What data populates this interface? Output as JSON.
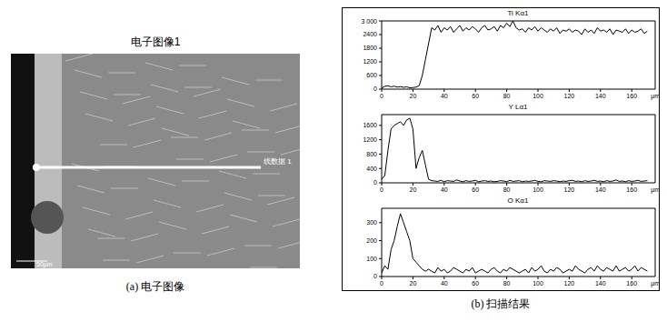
{
  "image": {
    "title": "电子图像1",
    "line_label": "线数据 1",
    "scale_bar": "50μm",
    "caption": "(a) 电子图像"
  },
  "caption_b": "(b) 扫描结果",
  "chart_data": [
    {
      "type": "line",
      "title": "Ti Kα1",
      "color": "#000000",
      "xlabel": "μm",
      "xlim": [
        0,
        175
      ],
      "xticks": [
        0,
        20,
        40,
        60,
        80,
        100,
        120,
        140,
        160
      ],
      "ylim": [
        0,
        3000
      ],
      "yticks": [
        0,
        600,
        1200,
        1800,
        2400,
        {
          "value": 3000,
          "label": "3 000"
        }
      ],
      "x": [
        0,
        2,
        4,
        6,
        8,
        10,
        12,
        14,
        16,
        18,
        20,
        22,
        24,
        26,
        28,
        30,
        32,
        34,
        36,
        38,
        40,
        42,
        44,
        46,
        48,
        50,
        52,
        54,
        56,
        58,
        60,
        62,
        64,
        66,
        68,
        70,
        72,
        74,
        76,
        78,
        80,
        82,
        84,
        86,
        88,
        90,
        92,
        94,
        96,
        98,
        100,
        102,
        104,
        106,
        108,
        110,
        112,
        114,
        116,
        118,
        120,
        122,
        124,
        126,
        128,
        130,
        132,
        134,
        136,
        138,
        140,
        142,
        144,
        146,
        148,
        150,
        152,
        154,
        156,
        158,
        160,
        162,
        164,
        166,
        168,
        170
      ],
      "values": [
        50,
        120,
        150,
        100,
        130,
        90,
        110,
        80,
        100,
        60,
        70,
        90,
        150,
        600,
        1300,
        2000,
        2700,
        2600,
        2800,
        2500,
        2700,
        2600,
        2750,
        2500,
        2650,
        2800,
        2550,
        2700,
        2600,
        2750,
        2650,
        2500,
        2700,
        2800,
        2600,
        2650,
        2750,
        2550,
        2800,
        2700,
        2900,
        2750,
        3000,
        2700,
        2600,
        2650,
        2500,
        2700,
        2600,
        2750,
        2550,
        2700,
        2600,
        2500,
        2650,
        2550,
        2700,
        2450,
        2600,
        2550,
        2650,
        2500,
        2600,
        2550,
        2400,
        2650,
        2500,
        2600,
        2450,
        2700,
        2550,
        2600,
        2500,
        2650,
        2400,
        2600,
        2550,
        2500,
        2650,
        2450,
        2600,
        2500,
        2550,
        2650,
        2450,
        2550
      ]
    },
    {
      "type": "line",
      "title": "Y Lα1",
      "color": "#000000",
      "xlabel": "μm",
      "xlim": [
        0,
        175
      ],
      "xticks": [
        0,
        20,
        40,
        60,
        80,
        100,
        120,
        140,
        160
      ],
      "ylim": [
        0,
        1900
      ],
      "yticks": [
        0,
        400,
        800,
        1200,
        1600
      ],
      "x": [
        0,
        2,
        4,
        6,
        8,
        10,
        12,
        14,
        16,
        18,
        20,
        22,
        24,
        26,
        28,
        30,
        32,
        34,
        36,
        38,
        40,
        42,
        44,
        46,
        48,
        50,
        52,
        54,
        56,
        58,
        60,
        62,
        64,
        66,
        68,
        70,
        72,
        74,
        76,
        78,
        80,
        82,
        84,
        86,
        88,
        90,
        92,
        94,
        96,
        98,
        100,
        102,
        104,
        106,
        108,
        110,
        112,
        114,
        116,
        118,
        120,
        122,
        124,
        126,
        128,
        130,
        132,
        134,
        136,
        138,
        140,
        142,
        144,
        146,
        148,
        150,
        152,
        154,
        156,
        158,
        160,
        162,
        164,
        166,
        168,
        170
      ],
      "values": [
        100,
        200,
        900,
        1500,
        1600,
        1650,
        1700,
        1600,
        1750,
        1800,
        1500,
        400,
        700,
        900,
        500,
        100,
        60,
        50,
        40,
        70,
        30,
        60,
        50,
        40,
        80,
        50,
        30,
        60,
        40,
        50,
        70,
        30,
        50,
        60,
        40,
        50,
        30,
        40,
        60,
        50,
        30,
        70,
        40,
        50,
        60,
        30,
        50,
        40,
        50,
        70,
        40,
        30,
        60,
        50,
        40,
        60,
        50,
        30,
        50,
        40,
        60,
        70,
        40,
        50,
        30,
        60,
        40,
        50,
        70,
        40,
        50,
        30,
        60,
        40,
        50,
        80,
        40,
        50,
        30,
        60,
        40,
        50,
        70,
        40,
        50,
        60
      ]
    },
    {
      "type": "line",
      "title": "O Kα1",
      "color": "#000000",
      "xlabel": "μm",
      "xlim": [
        0,
        175
      ],
      "xticks": [
        0,
        20,
        40,
        60,
        80,
        100,
        120,
        140,
        160
      ],
      "ylim": [
        0,
        380
      ],
      "yticks": [
        0,
        100,
        200,
        300
      ],
      "x": [
        0,
        2,
        4,
        6,
        8,
        10,
        12,
        14,
        16,
        18,
        20,
        22,
        24,
        26,
        28,
        30,
        32,
        34,
        36,
        38,
        40,
        42,
        44,
        46,
        48,
        50,
        52,
        54,
        56,
        58,
        60,
        62,
        64,
        66,
        68,
        70,
        72,
        74,
        76,
        78,
        80,
        82,
        84,
        86,
        88,
        90,
        92,
        94,
        96,
        98,
        100,
        102,
        104,
        106,
        108,
        110,
        112,
        114,
        116,
        118,
        120,
        122,
        124,
        126,
        128,
        130,
        132,
        134,
        136,
        138,
        140,
        142,
        144,
        146,
        148,
        150,
        152,
        154,
        156,
        158,
        160,
        162,
        164,
        166,
        168,
        170
      ],
      "values": [
        20,
        60,
        40,
        150,
        200,
        280,
        350,
        300,
        250,
        200,
        100,
        80,
        60,
        40,
        30,
        40,
        30,
        20,
        50,
        30,
        40,
        20,
        30,
        50,
        40,
        30,
        20,
        40,
        30,
        50,
        20,
        30,
        40,
        30,
        20,
        40,
        50,
        30,
        20,
        40,
        30,
        50,
        40,
        30,
        20,
        30,
        40,
        20,
        50,
        30,
        40,
        60,
        30,
        20,
        40,
        30,
        50,
        40,
        20,
        30,
        40,
        30,
        60,
        40,
        30,
        20,
        40,
        50,
        30,
        60,
        40,
        30,
        50,
        40,
        30,
        60,
        30,
        40,
        50,
        30,
        40,
        60,
        30,
        50,
        40,
        30
      ]
    }
  ]
}
